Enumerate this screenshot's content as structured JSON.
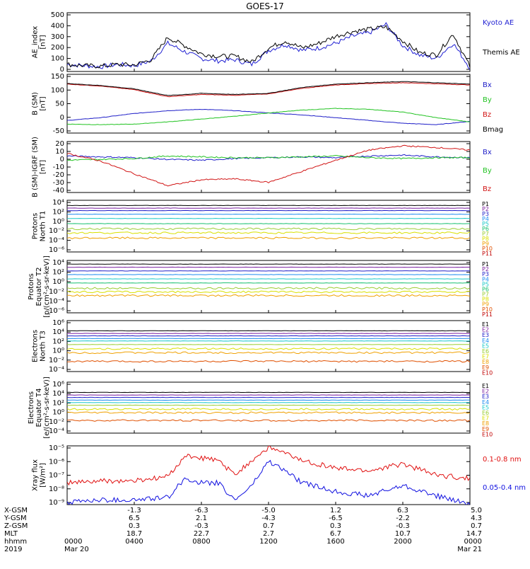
{
  "title": "GOES-17",
  "colors": {
    "black": "#000000",
    "blue": "#1f1fc8",
    "green": "#22c322",
    "red": "#d11414",
    "ae_kyoto": "#1f1fd2",
    "xray_long": "#e01010",
    "xray_short": "#1010e0"
  },
  "panels": [
    {
      "id": "ae",
      "ylabel": [
        "AE_index",
        "[nT]"
      ],
      "ticks": [
        "500",
        "400",
        "300",
        "200",
        "100",
        "0"
      ],
      "legend": [
        {
          "label": "Kyoto AE",
          "color": "#1f1fd2"
        },
        {
          "label": "Themis AE",
          "color": "#000000"
        }
      ]
    },
    {
      "id": "b_sm",
      "ylabel": [
        "B (SM)",
        "[nT]"
      ],
      "ticks": [
        "150",
        "100",
        "50",
        "0",
        "-50"
      ],
      "legend": [
        {
          "label": "Bx",
          "color": "#1f1fc8"
        },
        {
          "label": "By",
          "color": "#22c322"
        },
        {
          "label": "Bz",
          "color": "#d11414"
        },
        {
          "label": "Bmag",
          "color": "#000000"
        }
      ]
    },
    {
      "id": "b_igrf",
      "ylabel": [
        "B (SM)-IGRF (SM)",
        "[nT]"
      ],
      "ticks": [
        "20",
        "10",
        "0",
        "-10",
        "-20",
        "-30",
        "-40"
      ],
      "legend": [
        {
          "label": "Bx",
          "color": "#1f1fc8"
        },
        {
          "label": "By",
          "color": "#22c322"
        },
        {
          "label": "Bz",
          "color": "#d11414"
        }
      ]
    },
    {
      "id": "protons_t1",
      "ylabel": [
        "Protons",
        "North T1"
      ],
      "ticks": [
        "10⁴",
        "10²",
        "10⁰",
        "10⁻²",
        "10⁻⁴",
        "10⁻⁶"
      ],
      "legend": [
        {
          "label": "P1",
          "color": "#000000"
        },
        {
          "label": "P2",
          "color": "#7a1fa0"
        },
        {
          "label": "P3",
          "color": "#1f1fc8"
        },
        {
          "label": "P4",
          "color": "#1e8cf0"
        },
        {
          "label": "P5",
          "color": "#18c8c8"
        },
        {
          "label": "P6",
          "color": "#18c070"
        },
        {
          "label": "P7",
          "color": "#9acd32"
        },
        {
          "label": "P8",
          "color": "#d8e000"
        },
        {
          "label": "P9",
          "color": "#f0a000"
        },
        {
          "label": "P10",
          "color": "#e05000"
        },
        {
          "label": "P11",
          "color": "#c00000"
        }
      ]
    },
    {
      "id": "protons_t2",
      "ylabel": [
        "Protons",
        "Equator T2",
        "[p/(cm²-s-sr-keV)]"
      ],
      "ticks": [
        "10⁴",
        "10²",
        "10⁰",
        "10⁻²",
        "10⁻⁴",
        "10⁻⁶"
      ],
      "legend": [
        {
          "label": "P1",
          "color": "#000000"
        },
        {
          "label": "P2",
          "color": "#7a1fa0"
        },
        {
          "label": "P3",
          "color": "#1f1fc8"
        },
        {
          "label": "P4",
          "color": "#1e8cf0"
        },
        {
          "label": "P5",
          "color": "#18c8c8"
        },
        {
          "label": "P6",
          "color": "#18c070"
        },
        {
          "label": "P7",
          "color": "#9acd32"
        },
        {
          "label": "P8",
          "color": "#d8e000"
        },
        {
          "label": "P9",
          "color": "#f0a000"
        },
        {
          "label": "P10",
          "color": "#e05000"
        },
        {
          "label": "P11",
          "color": "#c00000"
        }
      ]
    },
    {
      "id": "electrons_t3",
      "ylabel": [
        "Electrons",
        "North T3"
      ],
      "ticks": [
        "10⁶",
        "10⁴",
        "10²",
        "10⁰",
        "10⁻²",
        "10⁻⁴"
      ],
      "legend": [
        {
          "label": "E1",
          "color": "#000000"
        },
        {
          "label": "E2",
          "color": "#7a1fa0"
        },
        {
          "label": "E3",
          "color": "#1f1fc8"
        },
        {
          "label": "E4",
          "color": "#1e8cf0"
        },
        {
          "label": "E5",
          "color": "#18c8c8"
        },
        {
          "label": "E6",
          "color": "#9acd32"
        },
        {
          "label": "E7",
          "color": "#d8e000"
        },
        {
          "label": "E8",
          "color": "#f0a000"
        },
        {
          "label": "E9",
          "color": "#e05000"
        },
        {
          "label": "E10",
          "color": "#c00000"
        }
      ]
    },
    {
      "id": "electrons_t4",
      "ylabel": [
        "Electrons",
        "Equator T4",
        "[e/(cm²-s-sr-keV)]"
      ],
      "ticks": [
        "10⁶",
        "10⁴",
        "10²",
        "10⁰",
        "10⁻²",
        "10⁻⁴"
      ],
      "legend": [
        {
          "label": "E1",
          "color": "#000000"
        },
        {
          "label": "E2",
          "color": "#7a1fa0"
        },
        {
          "label": "E3",
          "color": "#1f1fc8"
        },
        {
          "label": "E4",
          "color": "#1e8cf0"
        },
        {
          "label": "E5",
          "color": "#18c8c8"
        },
        {
          "label": "E6",
          "color": "#9acd32"
        },
        {
          "label": "E7",
          "color": "#d8e000"
        },
        {
          "label": "E8",
          "color": "#f0a000"
        },
        {
          "label": "E9",
          "color": "#e05000"
        },
        {
          "label": "E10",
          "color": "#c00000"
        }
      ]
    },
    {
      "id": "xray",
      "ylabel": [
        "Xray flux",
        "[W/m²]"
      ],
      "ticks": [
        "10⁻⁵",
        "10⁻⁶",
        "10⁻⁷",
        "10⁻⁸",
        "10⁻⁹"
      ],
      "legend": [
        {
          "label": "0.1-0.8 nm",
          "color": "#e01010"
        },
        {
          "label": "0.05-0.4 nm",
          "color": "#1010e0"
        }
      ]
    }
  ],
  "ephemeris": {
    "row_labels": [
      "X-GSM",
      "Y-GSM",
      "Z-GSM",
      "MLT",
      "hhmm",
      "2019"
    ],
    "columns": [
      {
        "x": "",
        "y": "",
        "z": "",
        "mlt": "",
        "hhmm": "0000",
        "date": "Mar 20"
      },
      {
        "x": "-1.3",
        "y": "6.5",
        "z": "0.3",
        "mlt": "18.7",
        "hhmm": "0400",
        "date": ""
      },
      {
        "x": "-6.3",
        "y": "2.1",
        "z": "-0.3",
        "mlt": "22.7",
        "hhmm": "0800",
        "date": ""
      },
      {
        "x": "-5.0",
        "y": "-4.3",
        "z": "0.7",
        "mlt": "2.7",
        "hhmm": "1200",
        "date": ""
      },
      {
        "x": "1.2",
        "y": "-6.5",
        "z": "0.3",
        "mlt": "6.7",
        "hhmm": "1600",
        "date": ""
      },
      {
        "x": "6.3",
        "y": "-2.2",
        "z": "-0.3",
        "mlt": "10.7",
        "hhmm": "2000",
        "date": ""
      },
      {
        "x": "5.0",
        "y": "4.3",
        "z": "0.7",
        "mlt": "14.7",
        "hhmm": "0000",
        "date": "Mar 21"
      }
    ]
  },
  "chart_data": [
    {
      "type": "line",
      "panel": "AE index",
      "ylim": [
        0,
        500
      ],
      "x_hours": [
        0,
        1,
        2,
        3,
        4,
        5,
        6,
        7,
        8,
        9,
        10,
        11,
        12,
        13,
        14,
        15,
        16,
        17,
        18,
        19,
        20,
        21,
        22,
        23,
        24
      ],
      "series": [
        {
          "name": "Kyoto AE",
          "values": [
            60,
            50,
            40,
            60,
            50,
            90,
            240,
            170,
            110,
            90,
            100,
            60,
            180,
            230,
            180,
            200,
            240,
            300,
            330,
            400,
            220,
            140,
            110,
            240,
            30
          ]
        },
        {
          "name": "Themis AE",
          "values": [
            60,
            50,
            45,
            60,
            55,
            100,
            290,
            220,
            150,
            130,
            130,
            80,
            200,
            260,
            200,
            240,
            300,
            340,
            360,
            380,
            260,
            160,
            140,
            320,
            40
          ]
        }
      ]
    },
    {
      "type": "line",
      "panel": "B (SM)",
      "ylim": [
        -60,
        150
      ],
      "x_hours": [
        0,
        2,
        4,
        6,
        8,
        10,
        12,
        14,
        16,
        18,
        20,
        22,
        24
      ],
      "series": [
        {
          "name": "Bx",
          "values": [
            -15,
            -5,
            10,
            20,
            25,
            20,
            12,
            5,
            -5,
            -15,
            -25,
            -30,
            -18
          ]
        },
        {
          "name": "By",
          "values": [
            -28,
            -30,
            -28,
            -20,
            -10,
            0,
            12,
            22,
            28,
            25,
            15,
            -5,
            -20
          ]
        },
        {
          "name": "Bz",
          "values": [
            115,
            108,
            95,
            70,
            78,
            75,
            80,
            100,
            112,
            117,
            120,
            116,
            112
          ]
        },
        {
          "name": "Bmag",
          "values": [
            117,
            110,
            98,
            74,
            82,
            78,
            82,
            103,
            115,
            120,
            124,
            120,
            115
          ]
        }
      ]
    },
    {
      "type": "line",
      "panel": "B (SM)-IGRF (SM)",
      "ylim": [
        -40,
        20
      ],
      "x_hours": [
        0,
        2,
        4,
        6,
        8,
        10,
        12,
        14,
        16,
        18,
        20,
        22,
        24
      ],
      "series": [
        {
          "name": "Bx",
          "values": [
            3,
            2,
            1,
            -1,
            -2,
            0,
            1,
            2,
            1,
            3,
            4,
            2,
            1
          ]
        },
        {
          "name": "By",
          "values": [
            -2,
            -1,
            0,
            3,
            2,
            1,
            1,
            2,
            3,
            1,
            0,
            1,
            1
          ]
        },
        {
          "name": "Bz",
          "values": [
            6,
            -3,
            -18,
            -32,
            -25,
            -24,
            -28,
            -15,
            -2,
            10,
            15,
            13,
            10
          ]
        }
      ]
    },
    {
      "type": "line",
      "panel": "Protons North T1",
      "yscale": "log",
      "ylim": [
        1e-06,
        10000.0
      ],
      "series": [
        {
          "name": "P1",
          "values": [
            1000.0
          ]
        },
        {
          "name": "P2",
          "values": [
            300.0
          ]
        },
        {
          "name": "P3",
          "values": [
            100.0
          ]
        },
        {
          "name": "P4",
          "values": [
            20.0
          ]
        },
        {
          "name": "P5",
          "values": [
            3
          ]
        },
        {
          "name": "P6",
          "values": [
            0.3
          ]
        },
        {
          "name": "P7",
          "values": [
            0.03
          ]
        },
        {
          "name": "P8",
          "values": [
            0.005
          ]
        },
        {
          "name": "P9",
          "values": [
            0.0005
          ]
        }
      ]
    },
    {
      "type": "line",
      "panel": "Protons Equator T2",
      "yscale": "log",
      "ylim": [
        1e-06,
        10000.0
      ],
      "series": [
        {
          "name": "P1",
          "values": [
            2000.0
          ]
        },
        {
          "name": "P2",
          "values": [
            500.0
          ]
        },
        {
          "name": "P3",
          "values": [
            100.0
          ]
        },
        {
          "name": "P4",
          "values": [
            20.0
          ]
        },
        {
          "name": "P5",
          "values": [
            3
          ]
        },
        {
          "name": "P6",
          "values": [
            0.5
          ]
        },
        {
          "name": "P7",
          "values": [
            0.05
          ]
        },
        {
          "name": "P8",
          "values": [
            0.01
          ]
        },
        {
          "name": "P9",
          "values": [
            0.002
          ]
        }
      ]
    },
    {
      "type": "line",
      "panel": "Electrons North T3",
      "yscale": "log",
      "ylim": [
        0.0001,
        1000000.0
      ],
      "series": [
        {
          "name": "E1",
          "values": [
            10000.0
          ]
        },
        {
          "name": "E2",
          "values": [
            3000.0
          ]
        },
        {
          "name": "E3",
          "values": [
            1000.0
          ]
        },
        {
          "name": "E4",
          "values": [
            300.0
          ]
        },
        {
          "name": "E5",
          "values": [
            100.0
          ]
        },
        {
          "name": "E6",
          "values": [
            20.0
          ]
        },
        {
          "name": "E7",
          "values": [
            3
          ]
        },
        {
          "name": "E8",
          "values": [
            0.5
          ]
        },
        {
          "name": "E9",
          "values": [
            0.01
          ]
        }
      ]
    },
    {
      "type": "line",
      "panel": "Electrons Equator T4",
      "yscale": "log",
      "ylim": [
        0.0001,
        1000000.0
      ],
      "series": [
        {
          "name": "E1",
          "values": [
            10000.0
          ]
        },
        {
          "name": "E2",
          "values": [
            3000.0
          ]
        },
        {
          "name": "E3",
          "values": [
            1000.0
          ]
        },
        {
          "name": "E4",
          "values": [
            300.0
          ]
        },
        {
          "name": "E5",
          "values": [
            100.0
          ]
        },
        {
          "name": "E6",
          "values": [
            30.0
          ]
        },
        {
          "name": "E7",
          "values": [
            5
          ]
        },
        {
          "name": "E8",
          "values": [
            1
          ]
        },
        {
          "name": "E9",
          "values": [
            0.03
          ]
        }
      ]
    },
    {
      "type": "line",
      "panel": "Xray flux",
      "yscale": "log",
      "ylim": [
        1e-09,
        1e-05
      ],
      "x_hours": [
        0,
        2,
        4,
        6,
        7,
        8,
        9,
        10,
        11,
        12,
        13,
        14,
        16,
        18,
        20,
        22,
        24
      ],
      "series": [
        {
          "name": "0.1-0.8 nm",
          "values": [
            3e-08,
            4e-08,
            4e-08,
            8e-08,
            2e-06,
            1.5e-06,
            1e-06,
            1e-07,
            1e-06,
            8e-06,
            3e-06,
            1e-06,
            3e-07,
            2e-07,
            6e-07,
            1e-07,
            6e-08
          ]
        },
        {
          "name": "0.05-0.4 nm",
          "values": [
            1.5e-09,
            2e-09,
            2e-09,
            3e-09,
            6e-08,
            3e-08,
            3e-08,
            2e-09,
            2e-08,
            9e-07,
            2e-07,
            3e-08,
            8e-09,
            4e-09,
            2e-08,
            4e-09,
            1e-09
          ]
        }
      ]
    }
  ]
}
